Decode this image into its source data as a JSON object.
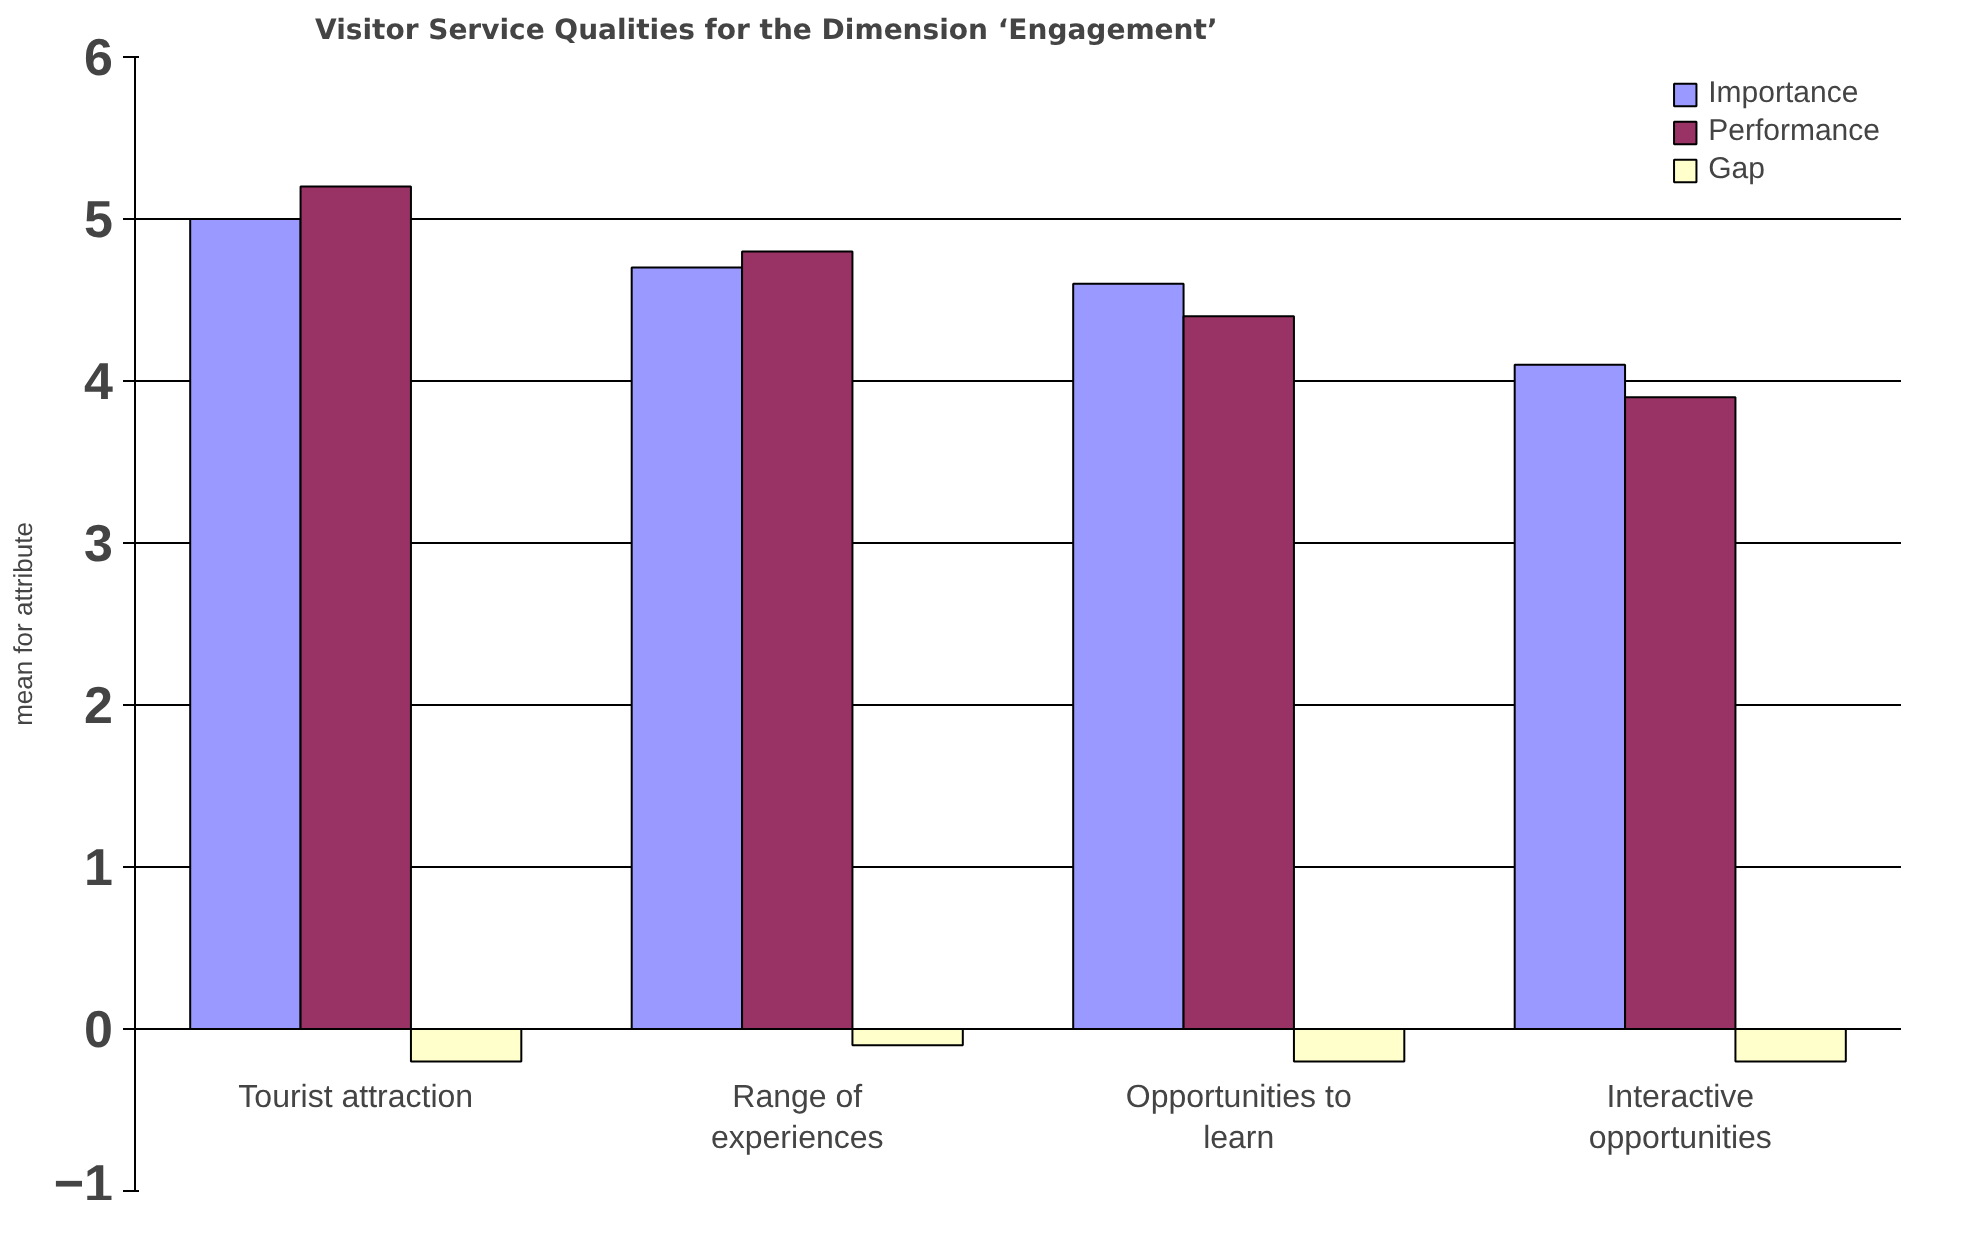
{
  "chart_data": {
    "type": "bar",
    "title": "Visitor Service Qualities for the Dimension ‘Engagement’",
    "ylabel": "mean for attribute",
    "categories": [
      "Tourist attraction",
      "Range of experiences",
      "Opportunities to learn",
      "Interactive opportunities"
    ],
    "series": [
      {
        "name": "Importance",
        "color": "#9999ff",
        "values": [
          5.0,
          4.7,
          4.6,
          4.1
        ]
      },
      {
        "name": "Performance",
        "color": "#993366",
        "values": [
          5.2,
          4.8,
          4.4,
          3.9
        ]
      },
      {
        "name": "Gap",
        "color": "#ffffcc",
        "values": [
          -0.2,
          -0.1,
          -0.2,
          -0.2
        ]
      }
    ],
    "ylim": [
      -1,
      6
    ],
    "yticks": [
      -1,
      0,
      1,
      2,
      3,
      4,
      5,
      6
    ],
    "grid": "y",
    "legend": "top right"
  }
}
